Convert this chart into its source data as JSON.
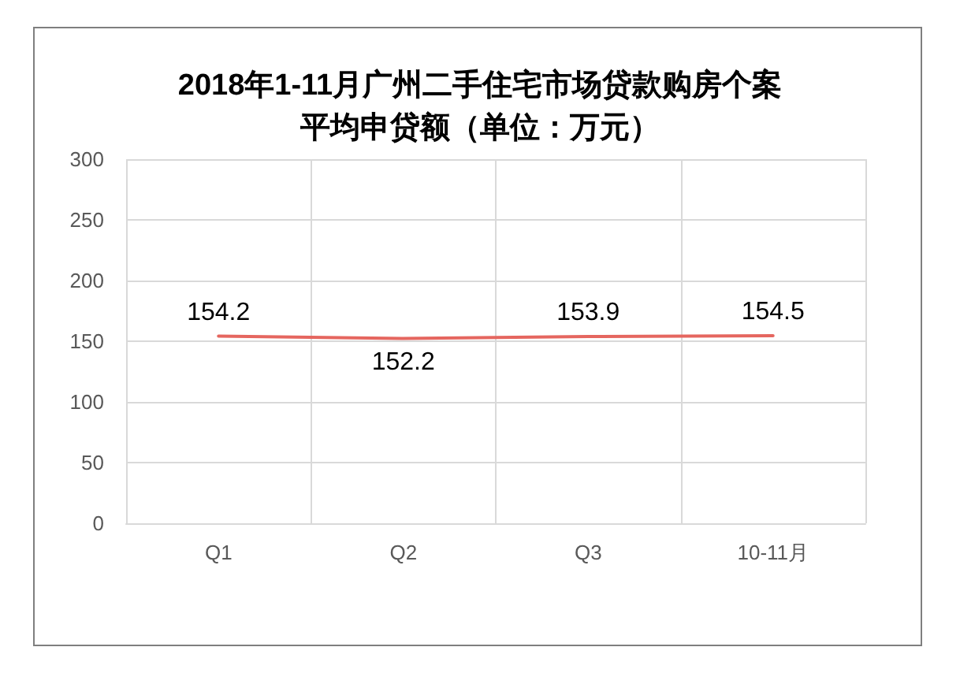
{
  "chart_data": {
    "type": "line",
    "title": "2018年1-11月广州二手住宅市场贷款购房个案平均申贷额（单位：万元）",
    "categories": [
      "Q1",
      "Q2",
      "Q3",
      "10-11月"
    ],
    "values": [
      154.2,
      152.2,
      153.9,
      154.5
    ],
    "color": "#e5665f",
    "ylim": [
      0,
      300
    ],
    "yticks": [
      0,
      50,
      100,
      150,
      200,
      250,
      300
    ],
    "grid": true,
    "data_labels": true,
    "marker": "none",
    "line_style": "solid"
  }
}
